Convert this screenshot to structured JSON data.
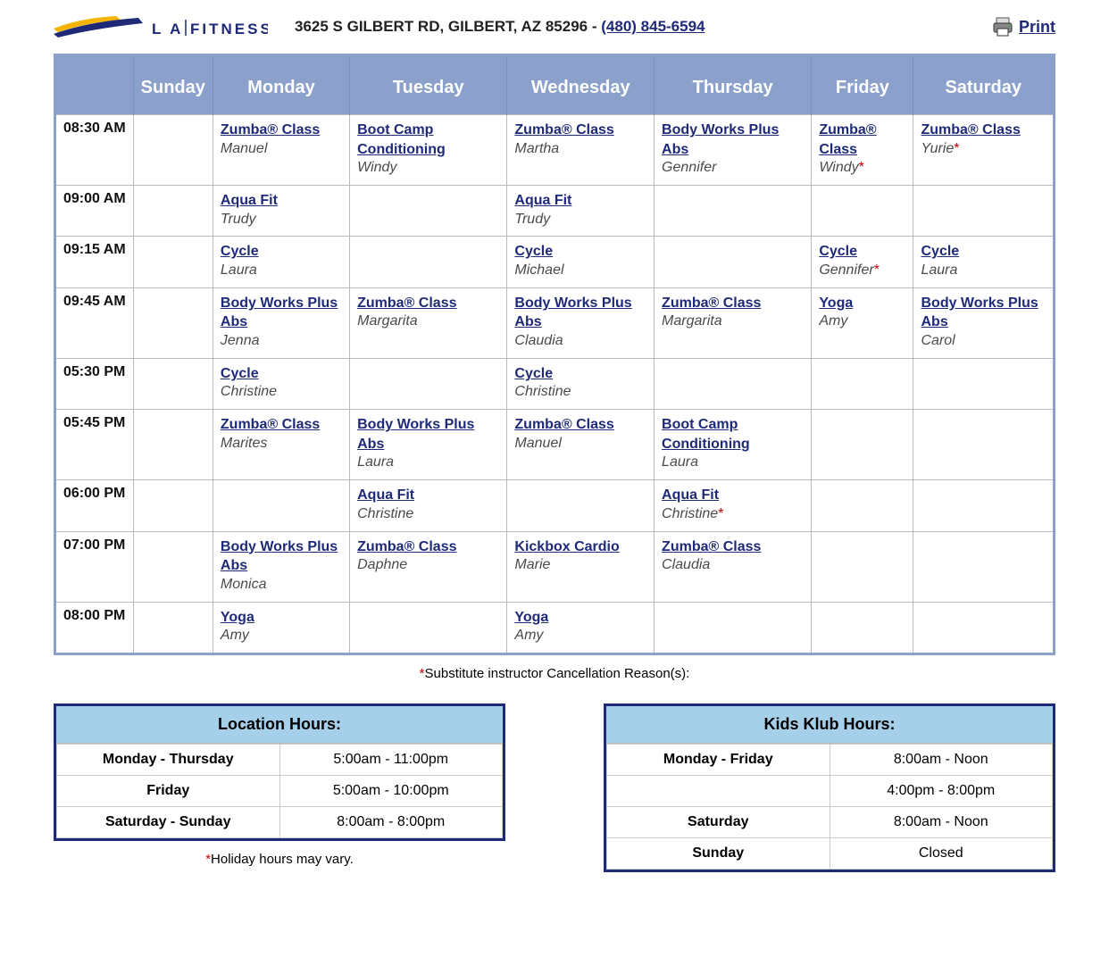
{
  "colors": {
    "header_bg": "#8ca0cc",
    "link": "#1e2a78",
    "hours_title_bg": "#a6d0ea",
    "border": "#bbb",
    "star": "#c00"
  },
  "header": {
    "address": "3625 S GILBERT RD, GILBERT, AZ 85296 - ",
    "phone": "(480) 845-6594",
    "print_label": "Print",
    "logo_text": "LA FITNESS"
  },
  "days": [
    "Sunday",
    "Monday",
    "Tuesday",
    "Wednesday",
    "Thursday",
    "Friday",
    "Saturday"
  ],
  "schedule": [
    {
      "time": "08:30 AM",
      "cells": [
        null,
        {
          "class": "Zumba® Class",
          "instr": "Manuel"
        },
        {
          "class": "Boot Camp Conditioning",
          "instr": "Windy"
        },
        {
          "class": "Zumba® Class",
          "instr": "Martha"
        },
        {
          "class": "Body Works Plus Abs",
          "instr": "Gennifer"
        },
        {
          "class": "Zumba® Class",
          "instr": "Windy",
          "sub": true
        },
        {
          "class": "Zumba® Class",
          "instr": "Yurie",
          "sub": true
        }
      ]
    },
    {
      "time": "09:00 AM",
      "cells": [
        null,
        {
          "class": "Aqua Fit",
          "instr": "Trudy"
        },
        null,
        {
          "class": "Aqua Fit",
          "instr": "Trudy"
        },
        null,
        null,
        null
      ]
    },
    {
      "time": "09:15 AM",
      "cells": [
        null,
        {
          "class": "Cycle",
          "instr": "Laura"
        },
        null,
        {
          "class": "Cycle",
          "instr": "Michael"
        },
        null,
        {
          "class": "Cycle",
          "instr": "Gennifer",
          "sub": true
        },
        {
          "class": "Cycle",
          "instr": "Laura"
        }
      ]
    },
    {
      "time": "09:45 AM",
      "cells": [
        null,
        {
          "class": "Body Works Plus Abs",
          "instr": "Jenna"
        },
        {
          "class": "Zumba® Class",
          "instr": "Margarita"
        },
        {
          "class": "Body Works Plus Abs",
          "instr": "Claudia"
        },
        {
          "class": "Zumba® Class",
          "instr": "Margarita"
        },
        {
          "class": "Yoga",
          "instr": "Amy"
        },
        {
          "class": "Body Works Plus Abs",
          "instr": "Carol"
        }
      ]
    },
    {
      "time": "05:30 PM",
      "cells": [
        null,
        {
          "class": "Cycle",
          "instr": "Christine"
        },
        null,
        {
          "class": "Cycle",
          "instr": "Christine"
        },
        null,
        null,
        null
      ]
    },
    {
      "time": "05:45 PM",
      "cells": [
        null,
        {
          "class": "Zumba® Class",
          "instr": "Marites"
        },
        {
          "class": "Body Works Plus Abs",
          "instr": "Laura"
        },
        {
          "class": "Zumba® Class",
          "instr": "Manuel"
        },
        {
          "class": "Boot Camp Conditioning",
          "instr": "Laura"
        },
        null,
        null
      ]
    },
    {
      "time": "06:00 PM",
      "cells": [
        null,
        null,
        {
          "class": "Aqua Fit",
          "instr": "Christine"
        },
        null,
        {
          "class": "Aqua Fit",
          "instr": "Christine",
          "sub": true
        },
        null,
        null
      ]
    },
    {
      "time": "07:00 PM",
      "cells": [
        null,
        {
          "class": "Body Works Plus Abs",
          "instr": "Monica"
        },
        {
          "class": "Zumba® Class",
          "instr": "Daphne"
        },
        {
          "class": "Kickbox Cardio",
          "instr": "Marie"
        },
        {
          "class": "Zumba® Class",
          "instr": "Claudia"
        },
        null,
        null
      ]
    },
    {
      "time": "08:00 PM",
      "cells": [
        null,
        {
          "class": "Yoga",
          "instr": "Amy"
        },
        null,
        {
          "class": "Yoga",
          "instr": "Amy"
        },
        null,
        null,
        null
      ]
    }
  ],
  "footnote": "Substitute instructor Cancellation Reason(s):",
  "location_hours": {
    "title": "Location Hours:",
    "rows": [
      {
        "label": "Monday - Thursday",
        "value": "5:00am - 11:00pm"
      },
      {
        "label": "Friday",
        "value": "5:00am - 10:00pm"
      },
      {
        "label": "Saturday - Sunday",
        "value": "8:00am - 8:00pm"
      }
    ],
    "holiday_note": "Holiday hours may vary."
  },
  "kids_klub_hours": {
    "title": "Kids Klub Hours:",
    "rows": [
      {
        "label": "Monday - Friday",
        "value": "8:00am - Noon"
      },
      {
        "label": "",
        "value": "4:00pm - 8:00pm"
      },
      {
        "label": "Saturday",
        "value": "8:00am - Noon"
      },
      {
        "label": "Sunday",
        "value": "Closed"
      }
    ]
  }
}
